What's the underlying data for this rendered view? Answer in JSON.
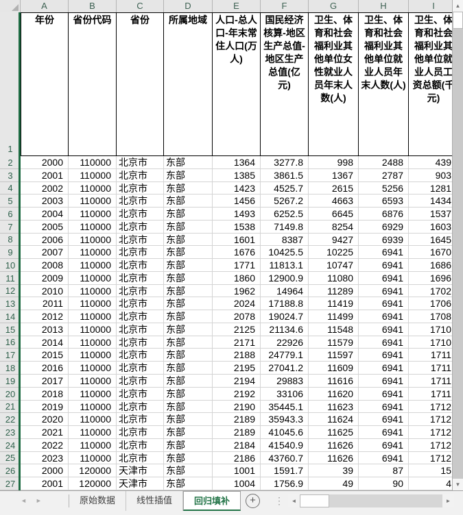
{
  "colors": {
    "accent_green": "#217346",
    "selection_edge_green": "#1e6c43",
    "header_bg": "#e6e6e6",
    "header_text_green": "#2f604b",
    "gridline": "#d4d4d4",
    "tab_bar_bg": "#f1f1f1"
  },
  "icons": {
    "select_all_triangle": "corner-triangle",
    "add_sheet": "+",
    "splitter_dots": "⋮",
    "scroll_up": "▲",
    "scroll_down": "▼",
    "scroll_left": "◄",
    "scroll_right": "►",
    "tab_nav_left": "◄",
    "tab_nav_right": "►"
  },
  "grid": {
    "column_letters": [
      "A",
      "B",
      "C",
      "D",
      "E",
      "F",
      "G",
      "H",
      "I"
    ],
    "field_row_number": "1",
    "field_headers": [
      "年份",
      "省份代码",
      "省份",
      "所属地域",
      "人口-总人口-年末常住人口(万人)",
      "国民经济核算-地区生产总值-地区生产总值(亿元)",
      "卫生、体育和社会福利业其他单位女性就业人员年末人数(人)",
      "卫生、体育和社会福利业其他单位就业人员年末人数(人)",
      "卫生、体育和社会福利业其他单位就业人员工资总额(千元)"
    ],
    "rows": [
      {
        "n": "2",
        "cells": [
          "2000",
          "110000",
          "北京市",
          "东部",
          "1364",
          "3277.8",
          "998",
          "2488",
          "439"
        ]
      },
      {
        "n": "3",
        "cells": [
          "2001",
          "110000",
          "北京市",
          "东部",
          "1385",
          "3861.5",
          "1367",
          "2787",
          "903"
        ]
      },
      {
        "n": "4",
        "cells": [
          "2002",
          "110000",
          "北京市",
          "东部",
          "1423",
          "4525.7",
          "2615",
          "5256",
          "1281"
        ]
      },
      {
        "n": "5",
        "cells": [
          "2003",
          "110000",
          "北京市",
          "东部",
          "1456",
          "5267.2",
          "4663",
          "6593",
          "1434"
        ]
      },
      {
        "n": "6",
        "cells": [
          "2004",
          "110000",
          "北京市",
          "东部",
          "1493",
          "6252.5",
          "6645",
          "6876",
          "1537"
        ]
      },
      {
        "n": "7",
        "cells": [
          "2005",
          "110000",
          "北京市",
          "东部",
          "1538",
          "7149.8",
          "8254",
          "6929",
          "1603"
        ]
      },
      {
        "n": "8",
        "cells": [
          "2006",
          "110000",
          "北京市",
          "东部",
          "1601",
          "8387",
          "9427",
          "6939",
          "1645"
        ]
      },
      {
        "n": "9",
        "cells": [
          "2007",
          "110000",
          "北京市",
          "东部",
          "1676",
          "10425.5",
          "10225",
          "6941",
          "1670"
        ]
      },
      {
        "n": "10",
        "cells": [
          "2008",
          "110000",
          "北京市",
          "东部",
          "1771",
          "11813.1",
          "10747",
          "6941",
          "1686"
        ]
      },
      {
        "n": "11",
        "cells": [
          "2009",
          "110000",
          "北京市",
          "东部",
          "1860",
          "12900.9",
          "11080",
          "6941",
          "1696"
        ]
      },
      {
        "n": "12",
        "cells": [
          "2010",
          "110000",
          "北京市",
          "东部",
          "1962",
          "14964",
          "11289",
          "6941",
          "1702"
        ]
      },
      {
        "n": "13",
        "cells": [
          "2011",
          "110000",
          "北京市",
          "东部",
          "2024",
          "17188.8",
          "11419",
          "6941",
          "1706"
        ]
      },
      {
        "n": "14",
        "cells": [
          "2012",
          "110000",
          "北京市",
          "东部",
          "2078",
          "19024.7",
          "11499",
          "6941",
          "1708"
        ]
      },
      {
        "n": "15",
        "cells": [
          "2013",
          "110000",
          "北京市",
          "东部",
          "2125",
          "21134.6",
          "11548",
          "6941",
          "1710"
        ]
      },
      {
        "n": "16",
        "cells": [
          "2014",
          "110000",
          "北京市",
          "东部",
          "2171",
          "22926",
          "11579",
          "6941",
          "1710"
        ]
      },
      {
        "n": "17",
        "cells": [
          "2015",
          "110000",
          "北京市",
          "东部",
          "2188",
          "24779.1",
          "11597",
          "6941",
          "1711"
        ]
      },
      {
        "n": "18",
        "cells": [
          "2016",
          "110000",
          "北京市",
          "东部",
          "2195",
          "27041.2",
          "11609",
          "6941",
          "1711"
        ]
      },
      {
        "n": "19",
        "cells": [
          "2017",
          "110000",
          "北京市",
          "东部",
          "2194",
          "29883",
          "11616",
          "6941",
          "1711"
        ]
      },
      {
        "n": "20",
        "cells": [
          "2018",
          "110000",
          "北京市",
          "东部",
          "2192",
          "33106",
          "11620",
          "6941",
          "1711"
        ]
      },
      {
        "n": "21",
        "cells": [
          "2019",
          "110000",
          "北京市",
          "东部",
          "2190",
          "35445.1",
          "11623",
          "6941",
          "1712"
        ]
      },
      {
        "n": "22",
        "cells": [
          "2020",
          "110000",
          "北京市",
          "东部",
          "2189",
          "35943.3",
          "11624",
          "6941",
          "1712"
        ]
      },
      {
        "n": "23",
        "cells": [
          "2021",
          "110000",
          "北京市",
          "东部",
          "2189",
          "41045.6",
          "11625",
          "6941",
          "1712"
        ]
      },
      {
        "n": "24",
        "cells": [
          "2022",
          "110000",
          "北京市",
          "东部",
          "2184",
          "41540.9",
          "11626",
          "6941",
          "1712"
        ]
      },
      {
        "n": "25",
        "cells": [
          "2023",
          "110000",
          "北京市",
          "东部",
          "2186",
          "43760.7",
          "11626",
          "6941",
          "1712"
        ]
      },
      {
        "n": "26",
        "cells": [
          "2000",
          "120000",
          "天津市",
          "东部",
          "1001",
          "1591.7",
          "39",
          "87",
          "15"
        ]
      },
      {
        "n": "27",
        "cells": [
          "2001",
          "120000",
          "天津市",
          "东部",
          "1004",
          "1756.9",
          "49",
          "90",
          "4"
        ]
      }
    ]
  },
  "sheet_tabs": {
    "items": [
      {
        "label": "原始数据",
        "active": false
      },
      {
        "label": "线性插值",
        "active": false
      },
      {
        "label": "回归填补",
        "active": true
      }
    ]
  }
}
